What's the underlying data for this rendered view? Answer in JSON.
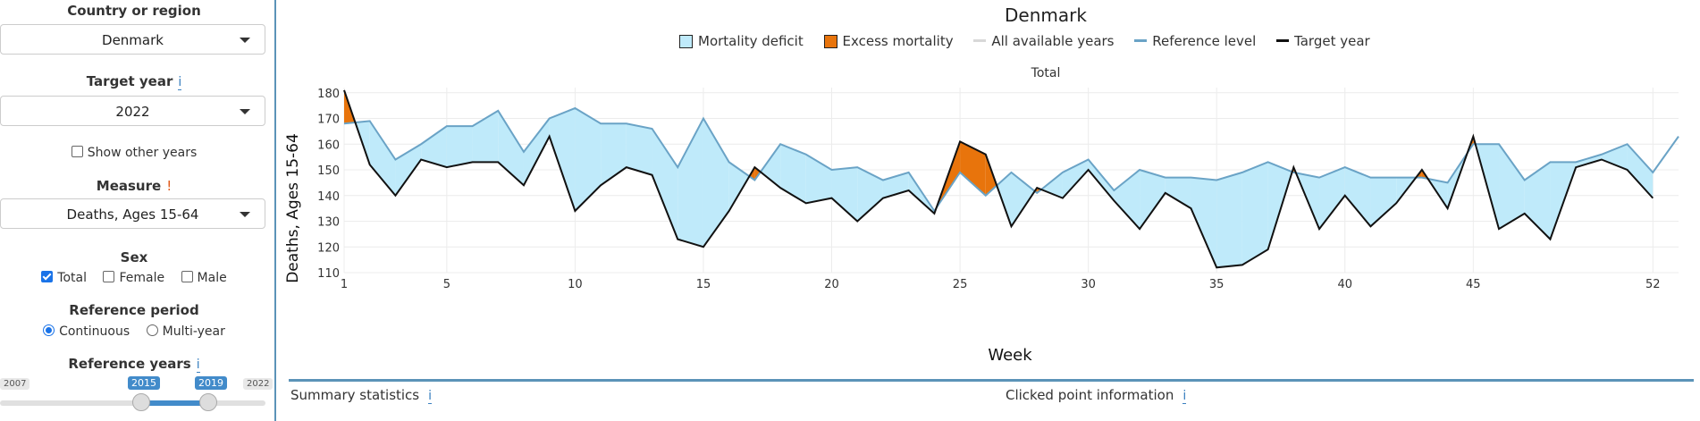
{
  "sidebar": {
    "country_label": "Country or region",
    "country_value": "Denmark",
    "target_year_label": "Target year",
    "target_year_info": "i",
    "target_year_value": "2022",
    "show_other_years": "Show other years",
    "measure_label": "Measure",
    "measure_warn": "!",
    "measure_value": "Deaths, Ages 15-64",
    "sex_label": "Sex",
    "sex_options": [
      {
        "label": "Total",
        "checked": true
      },
      {
        "label": "Female",
        "checked": false
      },
      {
        "label": "Male",
        "checked": false
      }
    ],
    "ref_period_label": "Reference period",
    "ref_period_options": [
      {
        "label": "Continuous",
        "selected": true
      },
      {
        "label": "Multi-year",
        "selected": false
      }
    ],
    "ref_years_label": "Reference years",
    "ref_years_info": "i",
    "slider": {
      "min": "2007",
      "max": "2022",
      "from": "2015",
      "to": "2019"
    }
  },
  "chart": {
    "title": "Denmark",
    "legend": [
      {
        "label": "Mortality deficit",
        "type": "fill",
        "color": "#bfeafa"
      },
      {
        "label": "Excess mortality",
        "type": "fill",
        "color": "#e8740c"
      },
      {
        "label": "All available years",
        "type": "line",
        "color": "#d8d8d8"
      },
      {
        "label": "Reference level",
        "type": "line",
        "color": "#6aa3c6"
      },
      {
        "label": "Target year",
        "type": "line",
        "color": "#111111"
      }
    ],
    "facet_title": "Total",
    "xlabel": "Week",
    "ylabel": "Deaths, Ages 15-64"
  },
  "bottom": {
    "summary_label": "Summary statistics",
    "summary_info": "i",
    "clicked_label": "Clicked point information",
    "clicked_info": "i"
  },
  "chart_data": {
    "type": "line",
    "title": "Denmark",
    "subtitle": "Total",
    "xlabel": "Week",
    "ylabel": "Deaths, Ages 15-64",
    "xlim": [
      1,
      53
    ],
    "ylim": [
      110,
      182
    ],
    "xticks": [
      1,
      5,
      10,
      15,
      20,
      25,
      30,
      35,
      40,
      45,
      52
    ],
    "yticks": [
      110,
      120,
      130,
      140,
      150,
      160,
      170,
      180
    ],
    "grid": true,
    "legend_position": "top",
    "series": [
      {
        "name": "Reference level",
        "color": "#6aa3c6",
        "x": [
          1,
          2,
          3,
          4,
          5,
          6,
          7,
          8,
          9,
          10,
          11,
          12,
          13,
          14,
          15,
          16,
          17,
          18,
          19,
          20,
          21,
          22,
          23,
          24,
          25,
          26,
          27,
          28,
          29,
          30,
          31,
          32,
          33,
          34,
          35,
          36,
          37,
          38,
          39,
          40,
          41,
          42,
          43,
          44,
          45,
          46,
          47,
          48,
          49,
          50,
          51,
          52,
          53
        ],
        "values": [
          168,
          169,
          154,
          160,
          167,
          167,
          173,
          157,
          170,
          174,
          168,
          168,
          166,
          151,
          170,
          153,
          146,
          160,
          156,
          150,
          151,
          146,
          149,
          134,
          149,
          140,
          149,
          141,
          149,
          154,
          142,
          150,
          147,
          147,
          146,
          149,
          153,
          149,
          147,
          151,
          147,
          147,
          147,
          145,
          160,
          160,
          146,
          153,
          153,
          156,
          160,
          149,
          163
        ]
      },
      {
        "name": "Target year",
        "color": "#111111",
        "x": [
          1,
          2,
          3,
          4,
          5,
          6,
          7,
          8,
          9,
          10,
          11,
          12,
          13,
          14,
          15,
          16,
          17,
          18,
          19,
          20,
          21,
          22,
          23,
          24,
          25,
          26,
          27,
          28,
          29,
          30,
          31,
          32,
          33,
          34,
          35,
          36,
          37,
          38,
          39,
          40,
          41,
          42,
          43,
          44,
          45,
          46,
          47,
          48,
          49,
          50,
          51,
          52
        ],
        "values": [
          181,
          152,
          140,
          154,
          151,
          153,
          153,
          144,
          163,
          134,
          144,
          151,
          148,
          123,
          120,
          134,
          151,
          143,
          137,
          139,
          130,
          139,
          142,
          133,
          161,
          156,
          128,
          143,
          139,
          150,
          138,
          127,
          141,
          135,
          112,
          113,
          119,
          151,
          127,
          140,
          128,
          137,
          150,
          135,
          163,
          127,
          133,
          123,
          151,
          154,
          150,
          139
        ]
      }
    ]
  }
}
